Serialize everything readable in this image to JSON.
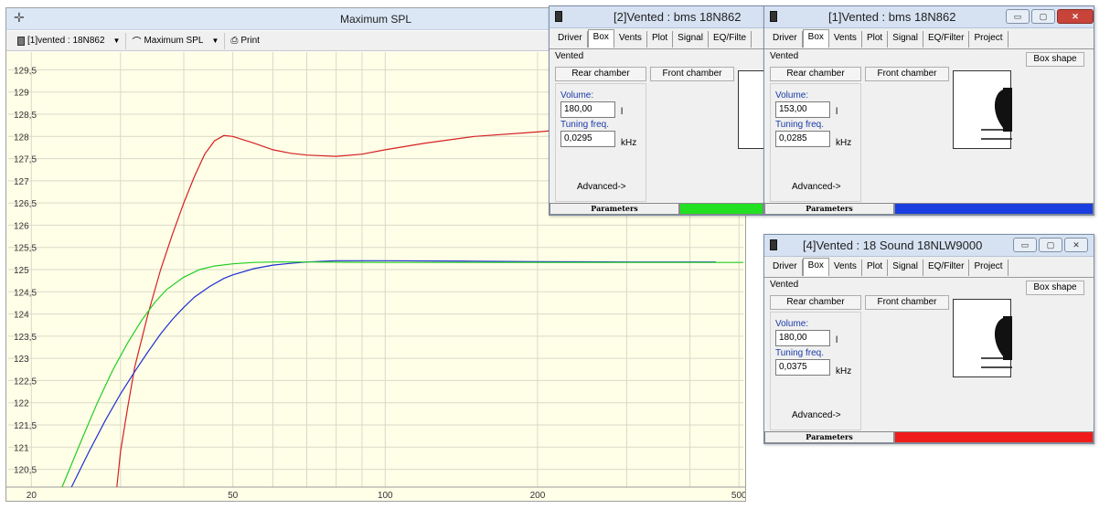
{
  "main_window": {
    "title": "Maximum SPL",
    "toolbar": {
      "driver_select": "[1]vented : 18N862",
      "curve_select": "Maximum SPL",
      "print_label": "Print"
    }
  },
  "chart_data": {
    "type": "line",
    "xscale": "log",
    "xlim": [
      18,
      510
    ],
    "ylim": [
      120.1,
      129.9
    ],
    "x_tick_labels": [
      "20",
      "50",
      "100",
      "200",
      "500"
    ],
    "x_ticks": [
      20,
      50,
      100,
      200,
      500
    ],
    "y_tick_labels": [
      "129,5",
      "129",
      "128,5",
      "128",
      "127,5",
      "127",
      "126,5",
      "126",
      "125,5",
      "125",
      "124,5",
      "124",
      "123,5",
      "123",
      "122,5",
      "122",
      "121,5",
      "121",
      "120,5"
    ],
    "y_ticks": [
      129.5,
      129,
      128.5,
      128,
      127.5,
      127,
      126.5,
      126,
      125.5,
      125,
      124.5,
      124,
      123.5,
      123,
      122.5,
      122,
      121.5,
      121,
      120.5
    ],
    "grid": true,
    "series": [
      {
        "color": "#d42020",
        "x": [
          29.5,
          30,
          31,
          32,
          34,
          36,
          38,
          40,
          42,
          44,
          46,
          48,
          50,
          55,
          60,
          65,
          70,
          80,
          90,
          100,
          120,
          150,
          200,
          250,
          300,
          400,
          500
        ],
        "y": [
          120.1,
          120.9,
          121.9,
          122.8,
          124.0,
          125.0,
          125.8,
          126.5,
          127.1,
          127.6,
          127.9,
          128.02,
          128.0,
          127.85,
          127.7,
          127.62,
          127.58,
          127.55,
          127.6,
          127.7,
          127.85,
          128.0,
          128.1,
          128.2,
          128.27,
          128.3,
          128.3
        ]
      },
      {
        "color": "#1f2fd0",
        "x": [
          24,
          26,
          28,
          30,
          32,
          34,
          36,
          38,
          40,
          42,
          45,
          48,
          50,
          55,
          60,
          65,
          70,
          80,
          100,
          150,
          200,
          300,
          450
        ],
        "y": [
          120.1,
          120.9,
          121.6,
          122.2,
          122.7,
          123.15,
          123.55,
          123.88,
          124.15,
          124.38,
          124.62,
          124.8,
          124.88,
          125.02,
          125.1,
          125.14,
          125.17,
          125.2,
          125.2,
          125.19,
          125.18,
          125.17,
          125.17
        ]
      },
      {
        "color": "#22cc22",
        "x": [
          23,
          25,
          27,
          29,
          31,
          33,
          35,
          37,
          40,
          43,
          46,
          50,
          55,
          60,
          70,
          100,
          200,
          300,
          510
        ],
        "y": [
          120.1,
          121.1,
          122.0,
          122.75,
          123.35,
          123.85,
          124.25,
          124.55,
          124.83,
          125.0,
          125.08,
          125.13,
          125.16,
          125.17,
          125.17,
          125.16,
          125.16,
          125.16,
          125.16
        ]
      }
    ]
  },
  "dialogs": [
    {
      "title": "[2]Vented : bms 18N862",
      "tabs": [
        "Driver",
        "Box",
        "Vents",
        "Plot",
        "Signal",
        "EQ/Filte"
      ],
      "active_tab": "Box",
      "box_type": "Vented",
      "rear_label": "Rear chamber",
      "front_label": "Front chamber",
      "volume_label": "Volume:",
      "volume_value": "180,00",
      "volume_unit": "l",
      "tuning_label": "Tuning freq.",
      "tuning_value": "0,0295",
      "tuning_unit": "kHz",
      "advanced_label": "Advanced->",
      "params_label": "Parameters",
      "color": "#22e022"
    },
    {
      "title": "[1]Vented : bms 18N862",
      "tabs": [
        "Driver",
        "Box",
        "Vents",
        "Plot",
        "Signal",
        "EQ/Filter",
        "Project"
      ],
      "active_tab": "Box",
      "box_type": "Vented",
      "rear_label": "Rear chamber",
      "front_label": "Front chamber",
      "box_shape_label": "Box shape",
      "volume_label": "Volume:",
      "volume_value": "153,00",
      "volume_unit": "l",
      "tuning_label": "Tuning freq.",
      "tuning_value": "0,0285",
      "tuning_unit": "kHz",
      "advanced_label": "Advanced->",
      "params_label": "Parameters",
      "color": "#1a3fe0"
    },
    {
      "title": "[4]Vented : 18 Sound 18NLW9000",
      "tabs": [
        "Driver",
        "Box",
        "Vents",
        "Plot",
        "Signal",
        "EQ/Filter",
        "Project"
      ],
      "active_tab": "Box",
      "box_type": "Vented",
      "rear_label": "Rear chamber",
      "front_label": "Front chamber",
      "box_shape_label": "Box shape",
      "volume_label": "Volume:",
      "volume_value": "180,00",
      "volume_unit": "l",
      "tuning_label": "Tuning freq.",
      "tuning_value": "0,0375",
      "tuning_unit": "kHz",
      "advanced_label": "Advanced->",
      "params_label": "Parameters",
      "color": "#f01c1c"
    }
  ]
}
